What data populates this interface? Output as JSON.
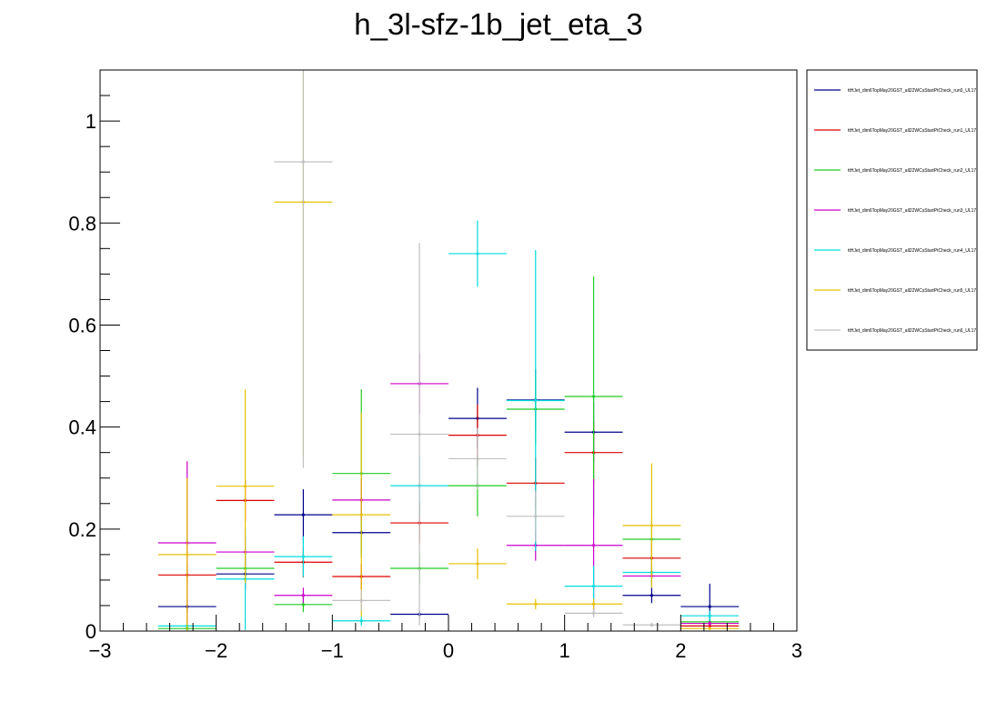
{
  "chart_data": {
    "type": "scatter",
    "title": "h_3l-sfz-1b_jet_eta_3",
    "xlabel": "",
    "ylabel": "",
    "xlim": [
      -3,
      3
    ],
    "ylim": [
      0,
      1.1
    ],
    "x_ticks": [
      -3,
      -2,
      -1,
      0,
      1,
      2,
      3
    ],
    "x_tick_labels": [
      "−3",
      "−2",
      "−1",
      "0",
      "1",
      "2",
      "3"
    ],
    "y_ticks": [
      0,
      0.2,
      0.4,
      0.6,
      0.8,
      1
    ],
    "y_tick_labels": [
      "0",
      "0.2",
      "0.4",
      "0.6",
      "0.8",
      "1"
    ],
    "grid": false,
    "legend_position": "right",
    "bin_centers": [
      -2.25,
      -1.75,
      -1.25,
      -0.75,
      -0.25,
      0.25,
      0.75,
      1.25,
      1.75,
      2.25
    ],
    "bin_half_width": 0.25,
    "series": [
      {
        "name": "ttHJet_dim6TopMay20GST_all22WCsStartPtCheck_run0_UL17",
        "color": "#00008b",
        "values": [
          0.048,
          0.112,
          0.228,
          0.193,
          0.033,
          0.417,
          0.453,
          0.39,
          0.07,
          0.048
        ],
        "errors": [
          0.012,
          0.03,
          0.05,
          0.04,
          0.008,
          0.06,
          0.06,
          0.06,
          0.015,
          0.045
        ]
      },
      {
        "name": "ttHJet_dim6TopMay20GST_all22WCsStartPtCheck_run1_UL17",
        "color": "#dd0000",
        "values": [
          0.11,
          0.256,
          0.135,
          0.107,
          0.212,
          0.384,
          0.29,
          0.35,
          0.143,
          0.01
        ],
        "errors": [
          0.02,
          0.04,
          0.03,
          0.025,
          0.04,
          0.06,
          0.05,
          0.06,
          0.03,
          0.005
        ]
      },
      {
        "name": "ttHJet_dim6TopMay20GST_all22WCsStartPtCheck_run2_UL17",
        "color": "#22cc22",
        "values": [
          0.005,
          0.123,
          0.052,
          0.309,
          0.123,
          0.285,
          0.435,
          0.46,
          0.18,
          0.018
        ],
        "errors": [
          0.003,
          0.03,
          0.015,
          0.165,
          0.03,
          0.06,
          0.07,
          0.235,
          0.04,
          0.005
        ]
      },
      {
        "name": "ttHJet_dim6TopMay20GST_all22WCsStartPtCheck_run3_UL17",
        "color": "#cc00cc",
        "values": [
          0.173,
          0.155,
          0.07,
          0.257,
          0.485,
          0.0,
          0.168,
          0.168,
          0.108,
          0.015
        ],
        "errors": [
          0.16,
          0.03,
          0.015,
          0.04,
          0.06,
          0.0,
          0.03,
          0.13,
          0.02,
          0.005
        ]
      },
      {
        "name": "ttHJet_dim6TopMay20GST_all22WCsStartPtCheck_run4_UL17",
        "color": "#00dddd",
        "values": [
          0.01,
          0.102,
          0.146,
          0.02,
          0.285,
          0.74,
          0.452,
          0.088,
          0.115,
          0.03
        ],
        "errors": [
          0.005,
          0.1,
          0.04,
          0.01,
          0.06,
          0.065,
          0.295,
          0.04,
          0.03,
          0.01
        ]
      },
      {
        "name": "ttHJet_dim6TopMay20GST_all22WCsStartPtCheck_run5_UL17",
        "color": "#e6c200",
        "values": [
          0.15,
          0.284,
          0.841,
          0.228,
          0.0,
          0.132,
          0.053,
          0.053,
          0.207,
          0.005
        ],
        "errors": [
          0.15,
          0.19,
          0.5,
          0.2,
          0.0,
          0.03,
          0.01,
          0.01,
          0.122,
          0.003
        ]
      },
      {
        "name": "ttHJet_dim6TopMay20GST_all22WCsStartPtCheck_run6_UL17",
        "color": "#c0c0c0",
        "values": [
          0.0,
          0.0,
          0.92,
          0.06,
          0.386,
          0.338,
          0.225,
          0.035,
          0.012,
          0.0
        ],
        "errors": [
          0.0,
          0.0,
          0.6,
          0.02,
          0.375,
          0.06,
          0.05,
          0.008,
          0.004,
          0.0
        ]
      }
    ]
  }
}
